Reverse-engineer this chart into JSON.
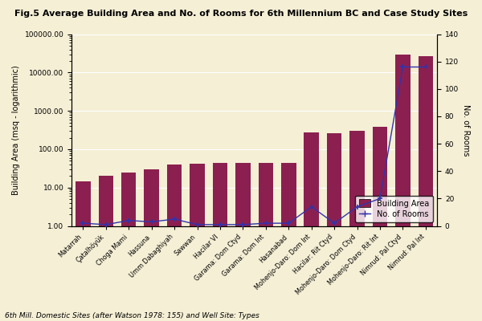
{
  "title": "Fig.5 Average Building Area and No. of Rooms for 6th Millennium BC and Case Study Sites",
  "ylabel_left": "Building Area (msq - logarithmic)",
  "ylabel_right": "No. of Rooms",
  "footnote": "6th Mill. Domestic Sites (after Watson 1978: 155) and Well Site: Types",
  "categories": [
    "Matarrah",
    "Çatalhöyük",
    "Choga Mami",
    "Hassuna",
    "Umm Dabaghiyah",
    "Sawwan",
    "Hacilar VI",
    "Garama: Dom Ctyd",
    "Garama: Dom Int",
    "Hasanabad",
    "Mohenjo-Daro: Dom Int",
    "Hacilar: Rit Ctyd",
    "Mohenjo-Daro: Dom Ctyd",
    "Mohenjo-Daro: Rit Int",
    "Nimrud: Pal Ctyd",
    "Nimrud: Pal Int"
  ],
  "building_area": [
    14.5,
    20.0,
    25.0,
    30.0,
    40.0,
    42.0,
    45.0,
    44.0,
    45.0,
    44.0,
    280.0,
    265.0,
    295.0,
    390.0,
    30000.0,
    27000.0
  ],
  "num_rooms": [
    2,
    1,
    4,
    3,
    5,
    1,
    1,
    1,
    2,
    2,
    14,
    2,
    14,
    20,
    116,
    116
  ],
  "bar_color": "#8B2050",
  "line_color": "#3333AA",
  "background_color": "#F5EFD5",
  "plot_bg_color": "#F5EFD5",
  "ylim_log": [
    1.0,
    100000.0
  ],
  "ylim_rooms": [
    0,
    140
  ],
  "yticks_log": [
    1.0,
    10.0,
    100.0,
    1000.0,
    10000.0,
    100000.0
  ],
  "ytick_labels_log": [
    "1.00",
    "10.00",
    "100.00",
    "1000.00",
    "10000.00",
    "100000.00"
  ],
  "yticks_rooms": [
    0,
    20,
    40,
    60,
    80,
    100,
    120,
    140
  ],
  "legend_bar_label": "Building Area",
  "legend_line_label": "No. of Rooms"
}
